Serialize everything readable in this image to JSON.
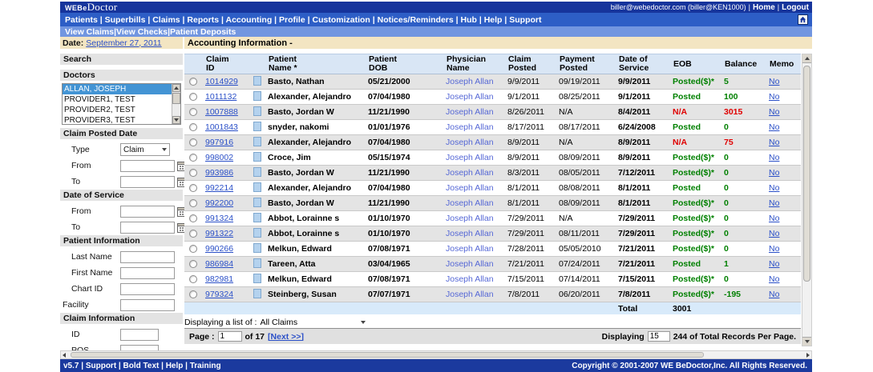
{
  "colors": {
    "topbar_blue": "#16349c",
    "nav_blue": "#2d5ec6",
    "subnav_blue": "#7296e0",
    "tan": "#f3e5c2",
    "link_blue": "#2b50c8",
    "physician_blue": "#5668d6",
    "green": "#008000",
    "red": "#e00000",
    "selection_blue": "#4394d4",
    "footer_blue": "#1b3a9e"
  },
  "header": {
    "logo_prefix": "WEBe",
    "logo_suffix": "Doctor",
    "user_info": "biller@webedoctor.com (biller@KEN1000)",
    "home_label": "Home",
    "logout_label": "Logout"
  },
  "nav": {
    "items": [
      "Patients",
      "Superbills",
      "Claims",
      "Reports",
      "Accounting",
      "Profile",
      "Customization",
      "Notices/Reminders",
      "Hub",
      "Help",
      "Support"
    ]
  },
  "subnav": {
    "items": [
      "View Claims",
      "View Checks",
      "Patient Deposits"
    ]
  },
  "sidebar": {
    "date_label": "Date:",
    "date_value": "September 27, 2011",
    "search_header": "Search",
    "doctors_header": "Doctors",
    "doctors": [
      "ALLAN, JOSEPH",
      "PROVIDER1, TEST",
      "PROVIDER2, TEST",
      "PROVIDER3, TEST"
    ],
    "selected_doctor": "ALLAN, JOSEPH",
    "claim_posted_header": "Claim Posted Date",
    "type_label": "Type",
    "type_value": "Claim",
    "from_label": "From",
    "to_label": "To",
    "date_of_service_header": "Date of Service",
    "patient_info_header": "Patient Information",
    "last_name_label": "Last Name",
    "first_name_label": "First Name",
    "chart_id_label": "Chart ID",
    "facility_label": "Facility",
    "claim_info_header": "Claim Information",
    "id_label": "ID",
    "pos_label": "POS"
  },
  "main": {
    "title": "Accounting Information -",
    "table": {
      "headers": [
        {
          "l1": "Claim",
          "l2": "ID"
        },
        {
          "l1": "Patient",
          "l2": "Name *"
        },
        {
          "l1": "Patient",
          "l2": "DOB"
        },
        {
          "l1": "Physician",
          "l2": "Name"
        },
        {
          "l1": "Claim",
          "l2": "Posted"
        },
        {
          "l1": "Payment",
          "l2": "Posted"
        },
        {
          "l1": "Date of",
          "l2": "Service"
        },
        {
          "l1": "EOB",
          "l2": ""
        },
        {
          "l1": "Balance",
          "l2": ""
        },
        {
          "l1": "Memo",
          "l2": ""
        }
      ],
      "rows": [
        {
          "claim_id": "1014929",
          "patient_name": "Basto, Nathan",
          "patient_dob": "05/21/2000",
          "physician_name": "Joseph Allan",
          "claim_posted": "9/9/2011",
          "payment_posted": "09/19/2011",
          "date_of_service": "9/9/2011",
          "eob": "Posted($)*",
          "eob_color": "green",
          "balance": "5",
          "balance_color": "green",
          "memo": "No"
        },
        {
          "claim_id": "1011132",
          "patient_name": "Alexander, Alejandro",
          "patient_dob": "07/04/1980",
          "physician_name": "Joseph Allan",
          "claim_posted": "9/1/2011",
          "payment_posted": "08/25/2011",
          "date_of_service": "9/1/2011",
          "eob": "Posted",
          "eob_color": "green",
          "balance": "100",
          "balance_color": "green",
          "memo": "No"
        },
        {
          "claim_id": "1007888",
          "patient_name": "Basto, Jordan W",
          "patient_dob": "11/21/1990",
          "physician_name": "Joseph Allan",
          "claim_posted": "8/26/2011",
          "payment_posted": "N/A",
          "date_of_service": "8/4/2011",
          "eob": "N/A",
          "eob_color": "red",
          "balance": "3015",
          "balance_color": "red",
          "memo": "No"
        },
        {
          "claim_id": "1001843",
          "patient_name": "snyder, nakomi",
          "patient_dob": "01/01/1976",
          "physician_name": "Joseph Allan",
          "claim_posted": "8/17/2011",
          "payment_posted": "08/17/2011",
          "date_of_service": "6/24/2008",
          "eob": "Posted",
          "eob_color": "green",
          "balance": "0",
          "balance_color": "green",
          "memo": "No"
        },
        {
          "claim_id": "997916",
          "patient_name": "Alexander, Alejandro",
          "patient_dob": "07/04/1980",
          "physician_name": "Joseph Allan",
          "claim_posted": "8/9/2011",
          "payment_posted": "N/A",
          "date_of_service": "8/9/2011",
          "eob": "N/A",
          "eob_color": "red",
          "balance": "75",
          "balance_color": "red",
          "memo": "No"
        },
        {
          "claim_id": "998002",
          "patient_name": "Croce, Jim",
          "patient_dob": "05/15/1974",
          "physician_name": "Joseph Allan",
          "claim_posted": "8/9/2011",
          "payment_posted": "08/09/2011",
          "date_of_service": "8/9/2011",
          "eob": "Posted($)*",
          "eob_color": "green",
          "balance": "0",
          "balance_color": "green",
          "memo": "No"
        },
        {
          "claim_id": "993986",
          "patient_name": "Basto, Jordan W",
          "patient_dob": "11/21/1990",
          "physician_name": "Joseph Allan",
          "claim_posted": "8/3/2011",
          "payment_posted": "08/05/2011",
          "date_of_service": "7/12/2011",
          "eob": "Posted($)*",
          "eob_color": "green",
          "balance": "0",
          "balance_color": "green",
          "memo": "No"
        },
        {
          "claim_id": "992214",
          "patient_name": "Alexander, Alejandro",
          "patient_dob": "07/04/1980",
          "physician_name": "Joseph Allan",
          "claim_posted": "8/1/2011",
          "payment_posted": "08/08/2011",
          "date_of_service": "8/1/2011",
          "eob": "Posted",
          "eob_color": "green",
          "balance": "0",
          "balance_color": "green",
          "memo": "No"
        },
        {
          "claim_id": "992200",
          "patient_name": "Basto, Jordan W",
          "patient_dob": "11/21/1990",
          "physician_name": "Joseph Allan",
          "claim_posted": "8/1/2011",
          "payment_posted": "08/09/2011",
          "date_of_service": "8/1/2011",
          "eob": "Posted($)*",
          "eob_color": "green",
          "balance": "0",
          "balance_color": "green",
          "memo": "No"
        },
        {
          "claim_id": "991324",
          "patient_name": "Abbot, Lorainne s",
          "patient_dob": "01/10/1970",
          "physician_name": "Joseph Allan",
          "claim_posted": "7/29/2011",
          "payment_posted": "N/A",
          "date_of_service": "7/29/2011",
          "eob": "Posted($)*",
          "eob_color": "green",
          "balance": "0",
          "balance_color": "green",
          "memo": "No"
        },
        {
          "claim_id": "991322",
          "patient_name": "Abbot, Lorainne s",
          "patient_dob": "01/10/1970",
          "physician_name": "Joseph Allan",
          "claim_posted": "7/29/2011",
          "payment_posted": "08/11/2011",
          "date_of_service": "7/29/2011",
          "eob": "Posted($)*",
          "eob_color": "green",
          "balance": "0",
          "balance_color": "green",
          "memo": "No"
        },
        {
          "claim_id": "990266",
          "patient_name": "Melkun, Edward",
          "patient_dob": "07/08/1971",
          "physician_name": "Joseph Allan",
          "claim_posted": "7/28/2011",
          "payment_posted": "05/05/2010",
          "date_of_service": "7/21/2011",
          "eob": "Posted($)*",
          "eob_color": "green",
          "balance": "0",
          "balance_color": "green",
          "memo": "No"
        },
        {
          "claim_id": "986984",
          "patient_name": "Tareen, Atta",
          "patient_dob": "03/04/1965",
          "physician_name": "Joseph Allan",
          "claim_posted": "7/21/2011",
          "payment_posted": "07/24/2011",
          "date_of_service": "7/21/2011",
          "eob": "Posted",
          "eob_color": "green",
          "balance": "1",
          "balance_color": "green",
          "memo": "No"
        },
        {
          "claim_id": "982981",
          "patient_name": "Melkun, Edward",
          "patient_dob": "07/08/1971",
          "physician_name": "Joseph Allan",
          "claim_posted": "7/15/2011",
          "payment_posted": "07/14/2011",
          "date_of_service": "7/15/2011",
          "eob": "Posted($)*",
          "eob_color": "green",
          "balance": "0",
          "balance_color": "green",
          "memo": "No"
        },
        {
          "claim_id": "979324",
          "patient_name": "Steinberg, Susan",
          "patient_dob": "07/07/1971",
          "physician_name": "Joseph Allan",
          "claim_posted": "7/8/2011",
          "payment_posted": "06/20/2011",
          "date_of_service": "7/8/2011",
          "eob": "Posted($)*",
          "eob_color": "green",
          "balance": "-195",
          "balance_color": "green",
          "memo": "No"
        }
      ],
      "total_label": "Total",
      "total_value": "3001"
    },
    "list_filter_label": "Displaying a list of :",
    "list_filter_value": "All Claims",
    "pager": {
      "page_label": "Page :",
      "page_value": "1",
      "of_label": "of 17",
      "next_label": "[Next >>]",
      "displaying_label": "Displaying",
      "per_page_value": "15",
      "records_label": "244 of Total Records  Per Page."
    }
  },
  "footer": {
    "items": [
      "v5.7",
      "Support",
      "Bold Text",
      "Help",
      "Training"
    ],
    "copyright": "Copyright © 2001-2007 WE BeDoctor,Inc. All Rights Reserved."
  }
}
